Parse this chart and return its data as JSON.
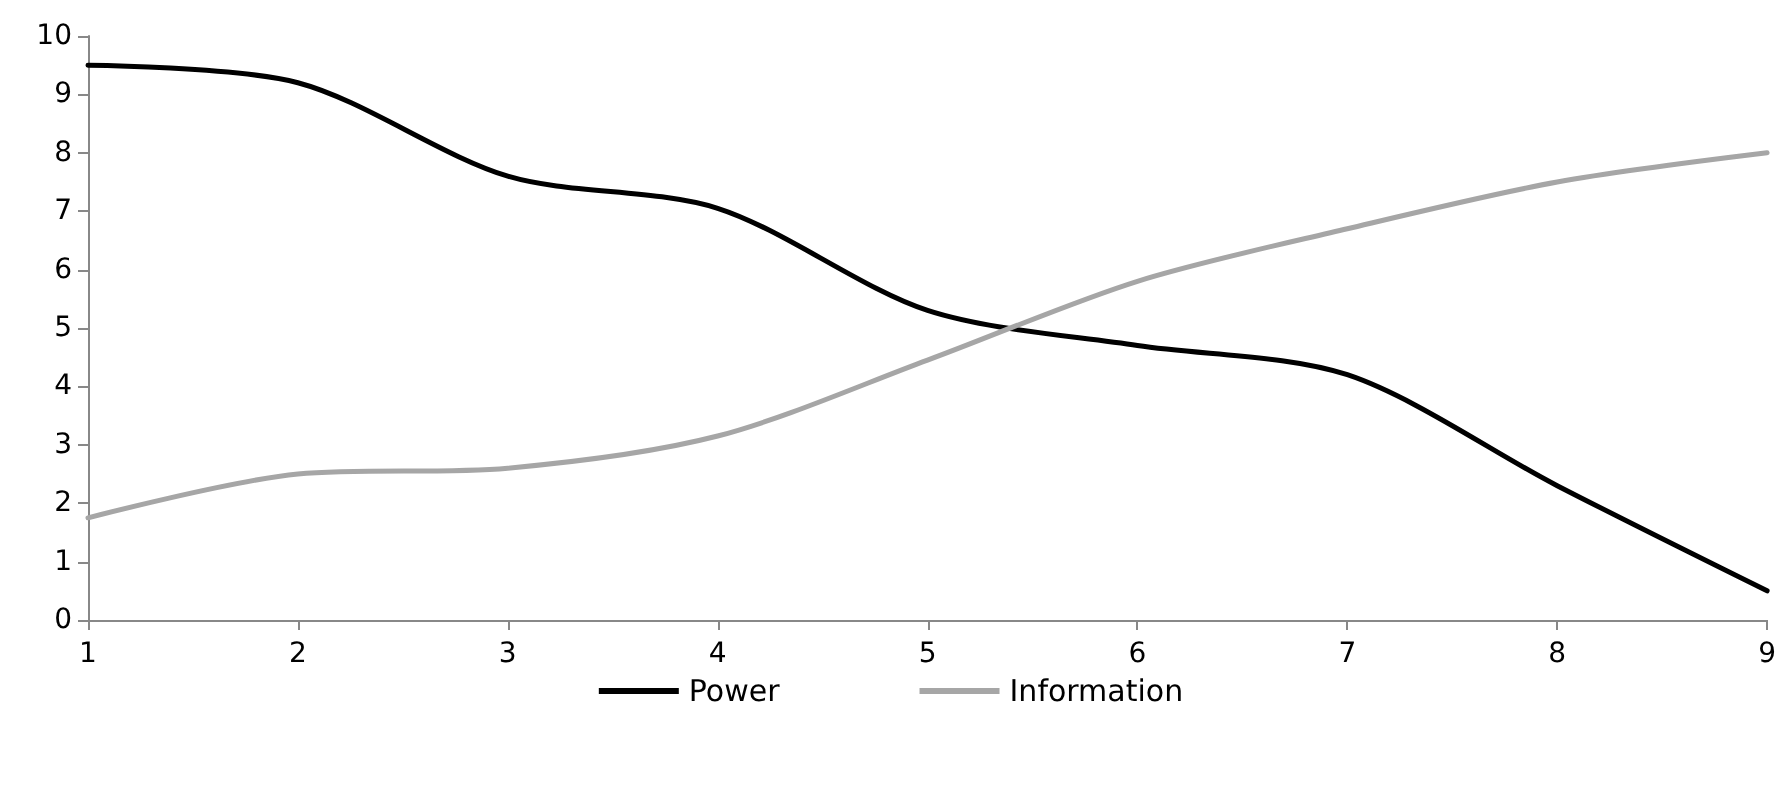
{
  "chart_data": {
    "type": "line",
    "x": [
      1,
      2,
      3,
      4,
      5,
      6,
      7,
      8,
      9
    ],
    "series": [
      {
        "name": "Power",
        "color": "#000000",
        "values": [
          9.5,
          9.2,
          7.6,
          7.05,
          5.3,
          4.7,
          4.2,
          2.3,
          0.5
        ]
      },
      {
        "name": "Information",
        "color": "#a6a6a6",
        "values": [
          1.75,
          2.5,
          2.6,
          3.15,
          4.45,
          5.8,
          6.7,
          7.5,
          8.0
        ]
      }
    ],
    "xlim": [
      1,
      9
    ],
    "xticks": [
      1,
      2,
      3,
      4,
      5,
      6,
      7,
      8,
      9
    ],
    "ylim": [
      0,
      10
    ],
    "yticks": [
      0,
      1,
      2,
      3,
      4,
      5,
      6,
      7,
      8,
      9,
      10
    ],
    "grid": false,
    "legend": "bottom",
    "marker": "none",
    "line_style": "solid"
  }
}
